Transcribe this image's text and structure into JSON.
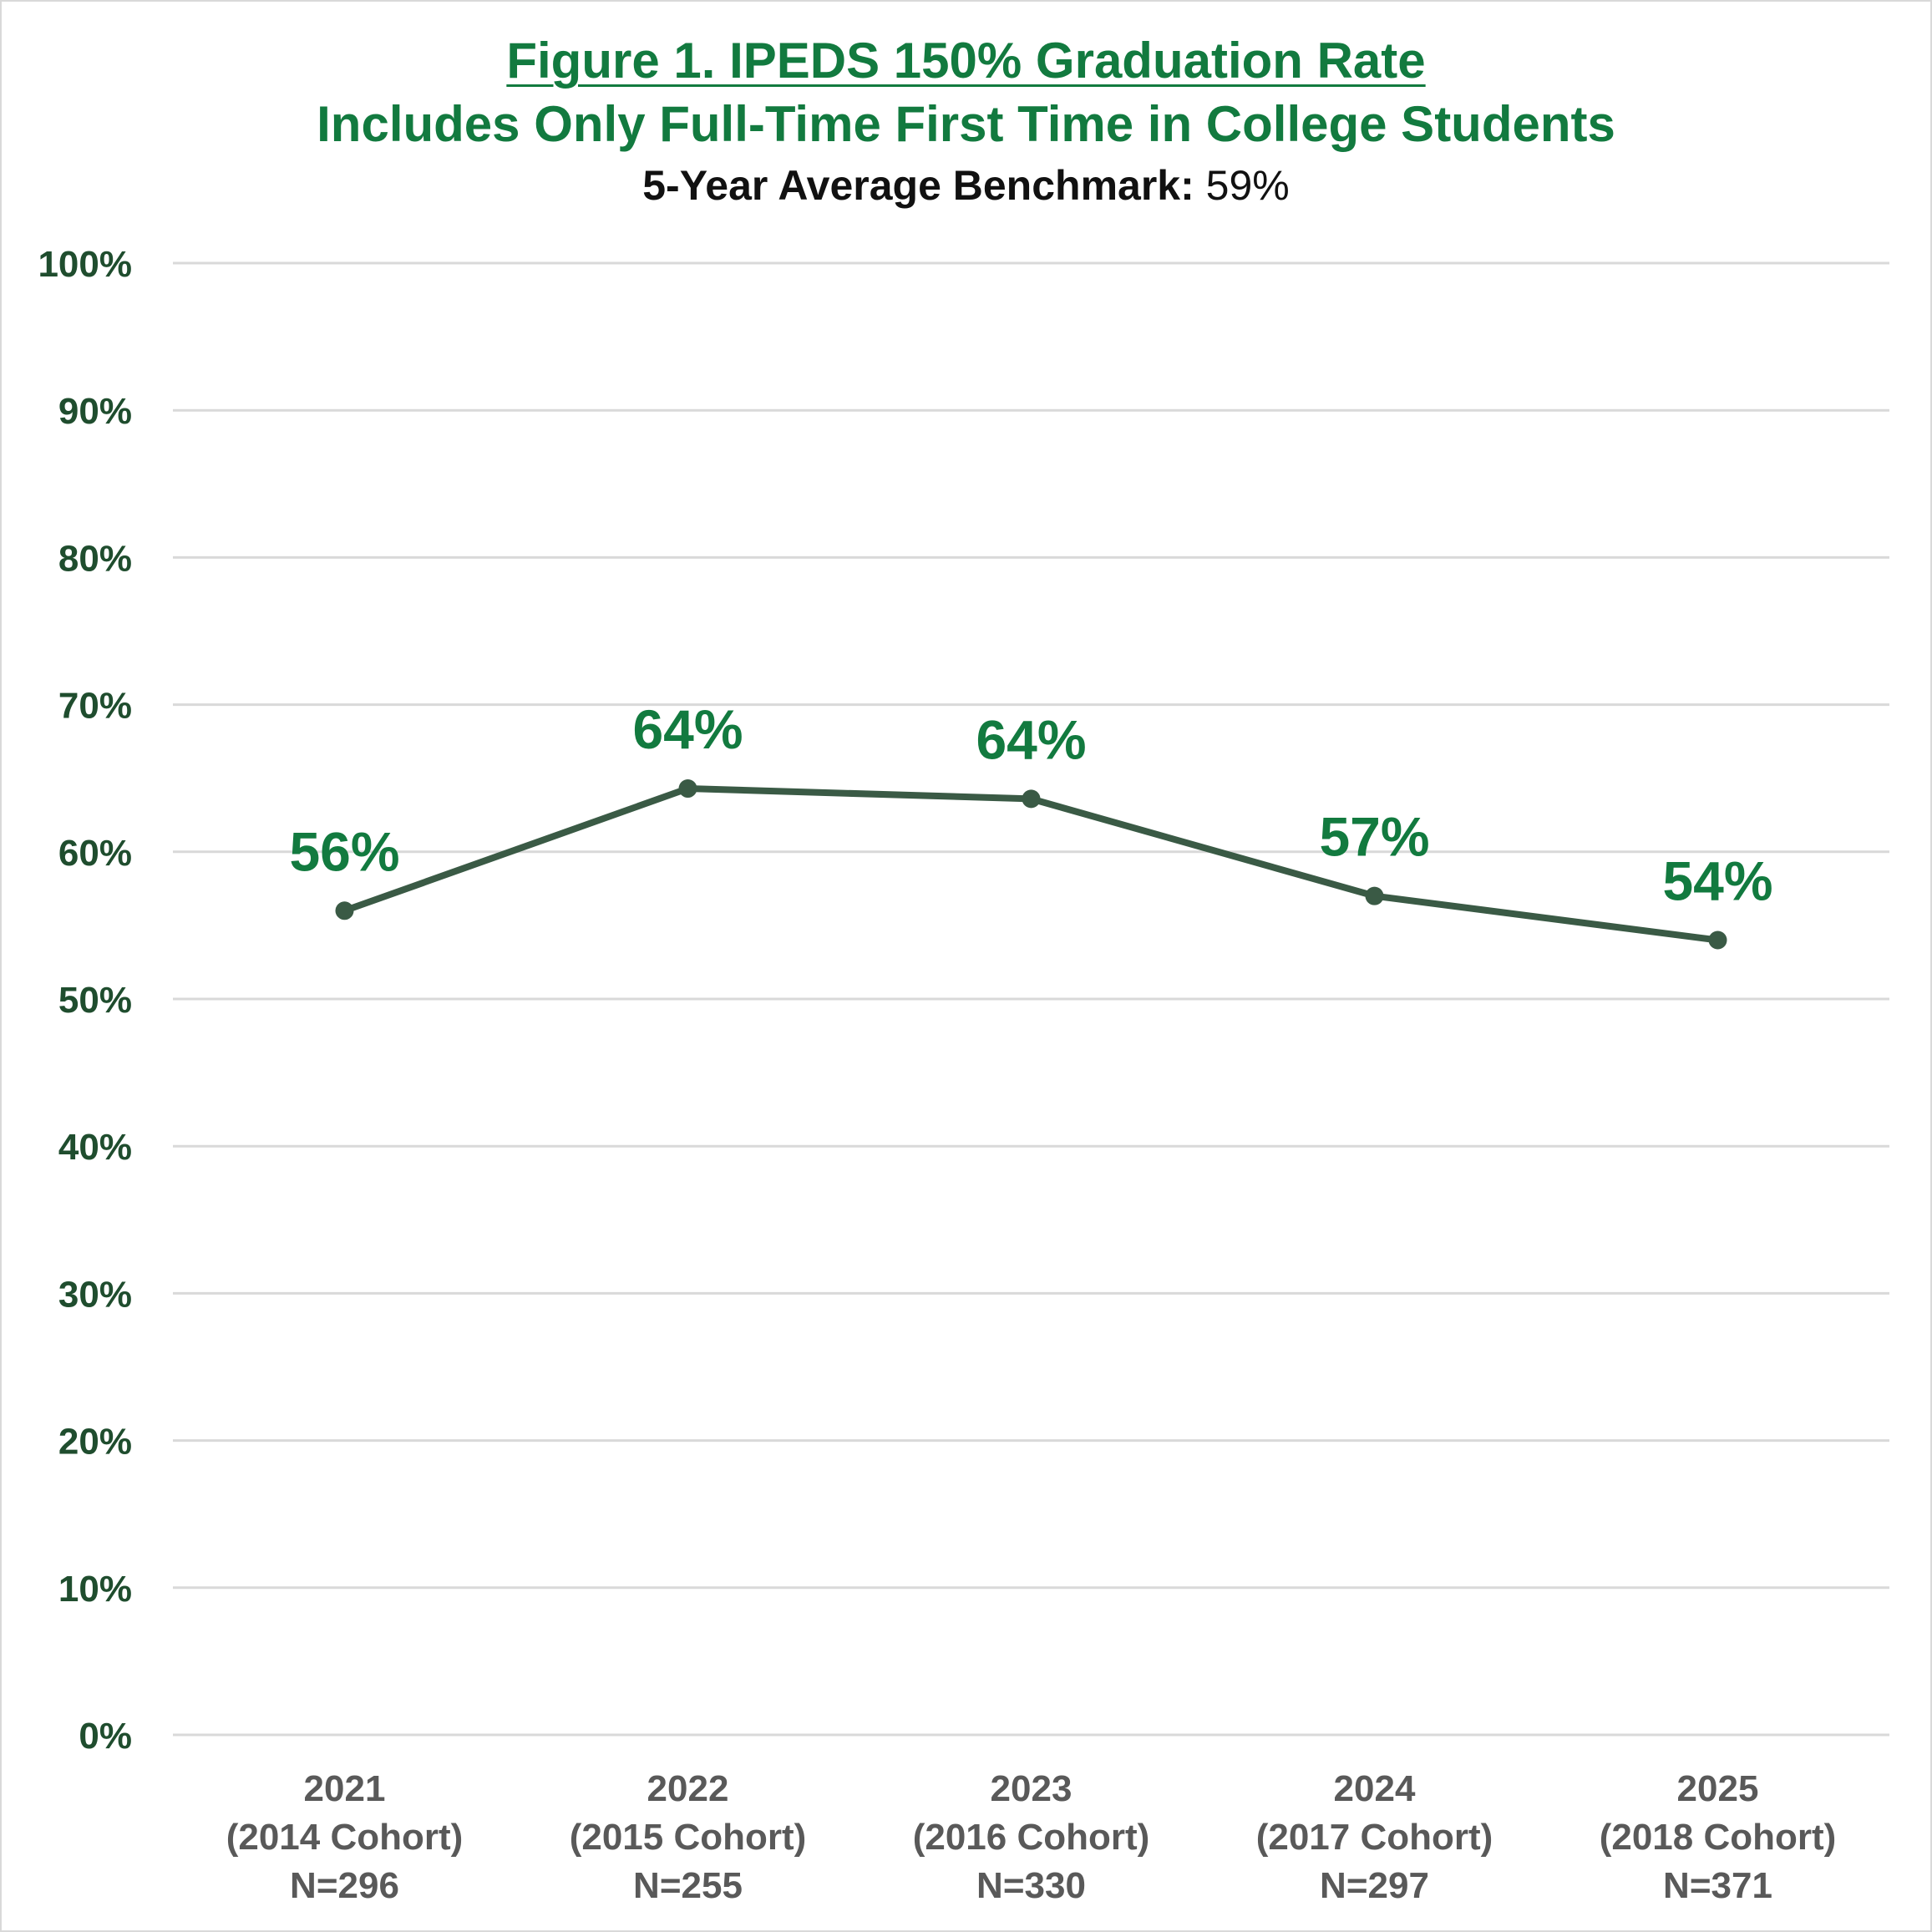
{
  "chart_data": {
    "type": "line",
    "title": "Figure 1. IPEDS 150% Graduation Rate",
    "subtitle": "Includes Only Full-Time First Time in College Students",
    "benchmark": {
      "label": "5-Year Average Benchmark:",
      "value": "59%"
    },
    "categories": [
      {
        "year": "2021",
        "cohort": "(2014 Cohort)",
        "n": "N=296"
      },
      {
        "year": "2022",
        "cohort": "(2015 Cohort)",
        "n": "N=255"
      },
      {
        "year": "2023",
        "cohort": "(2016 Cohort)",
        "n": "N=330"
      },
      {
        "year": "2024",
        "cohort": "(2017 Cohort)",
        "n": "N=297"
      },
      {
        "year": "2025",
        "cohort": "(2018 Cohort)",
        "n": "N=371"
      }
    ],
    "series": [
      {
        "values": [
          56,
          64.3,
          63.6,
          57,
          54
        ],
        "labels": [
          "56%",
          "64%",
          "64%",
          "57%",
          "54%"
        ]
      }
    ],
    "ylim": [
      0,
      100
    ],
    "yticks": [
      "0%",
      "10%",
      "20%",
      "30%",
      "40%",
      "50%",
      "60%",
      "70%",
      "80%",
      "90%",
      "100%"
    ],
    "grid": true,
    "legend": "none",
    "colors": {
      "line": "#3a5a45",
      "labels": "#127a3f",
      "grid": "#d9d9d9",
      "title": "#127a3f"
    }
  }
}
